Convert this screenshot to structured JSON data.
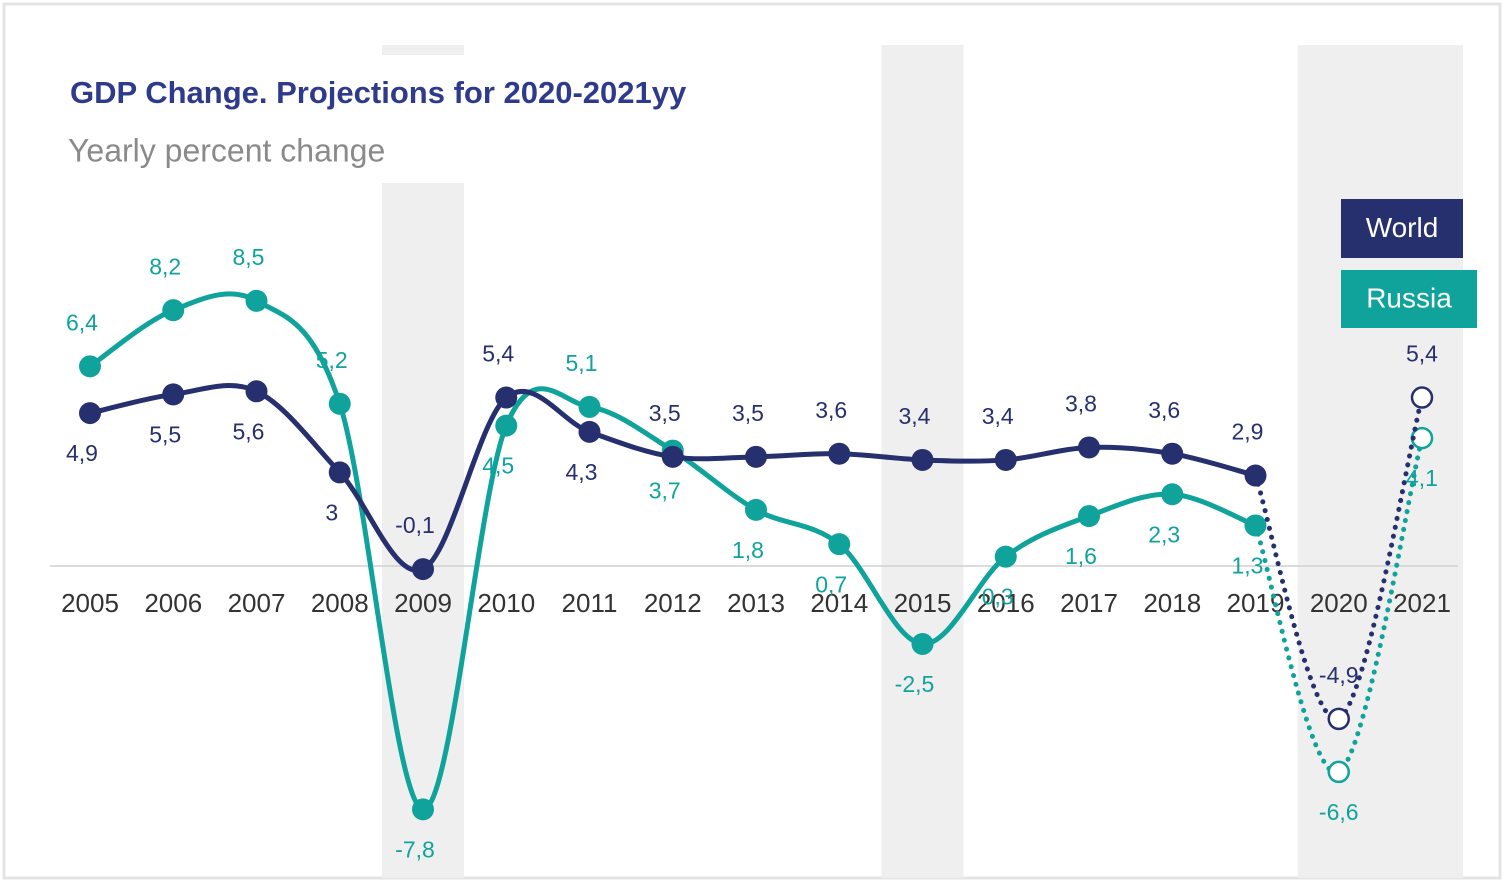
{
  "chart_data": {
    "type": "line",
    "title": "GDP Change. Projections for 2020-2021yy",
    "subtitle": "Yearly percent change",
    "categories": [
      "2005",
      "2006",
      "2007",
      "2008",
      "2009",
      "2010",
      "2011",
      "2012",
      "2013",
      "2014",
      "2015",
      "2016",
      "2017",
      "2018",
      "2019",
      "2020",
      "2021"
    ],
    "series": [
      {
        "name": "World",
        "color": "#27306e",
        "values": [
          4.9,
          5.5,
          5.6,
          3,
          -0.1,
          5.4,
          4.3,
          3.5,
          3.5,
          3.6,
          3.4,
          3.4,
          3.8,
          3.6,
          2.9,
          -4.9,
          5.4
        ],
        "value_labels": [
          "4,9",
          "5,5",
          "5,6",
          "3",
          "-0,1",
          "5,4",
          "4,3",
          "3,5",
          "3,5",
          "3,6",
          "3,4",
          "3,4",
          "3,8",
          "3,6",
          "2,9",
          "-4,9",
          "5,4"
        ]
      },
      {
        "name": "Russia",
        "color": "#0fa39c",
        "values": [
          6.4,
          8.2,
          8.5,
          5.2,
          -7.8,
          4.5,
          5.1,
          3.7,
          1.8,
          0.7,
          -2.5,
          0.3,
          1.6,
          2.3,
          1.3,
          -6.6,
          4.1
        ],
        "value_labels": [
          "6,4",
          "8,2",
          "8,5",
          "5,2",
          "-7,8",
          "4,5",
          "5,1",
          "3,7",
          "1,8",
          "0,7",
          "-2,5",
          "0,3",
          "1,6",
          "2,3",
          "1,3",
          "-6,6",
          "4,1"
        ]
      }
    ],
    "ylim": [
      -10,
      16.7
    ],
    "shaded": [
      [
        4,
        4
      ],
      [
        10,
        10
      ],
      [
        15,
        16
      ]
    ],
    "projection_from": 14,
    "legend": "top-right"
  }
}
